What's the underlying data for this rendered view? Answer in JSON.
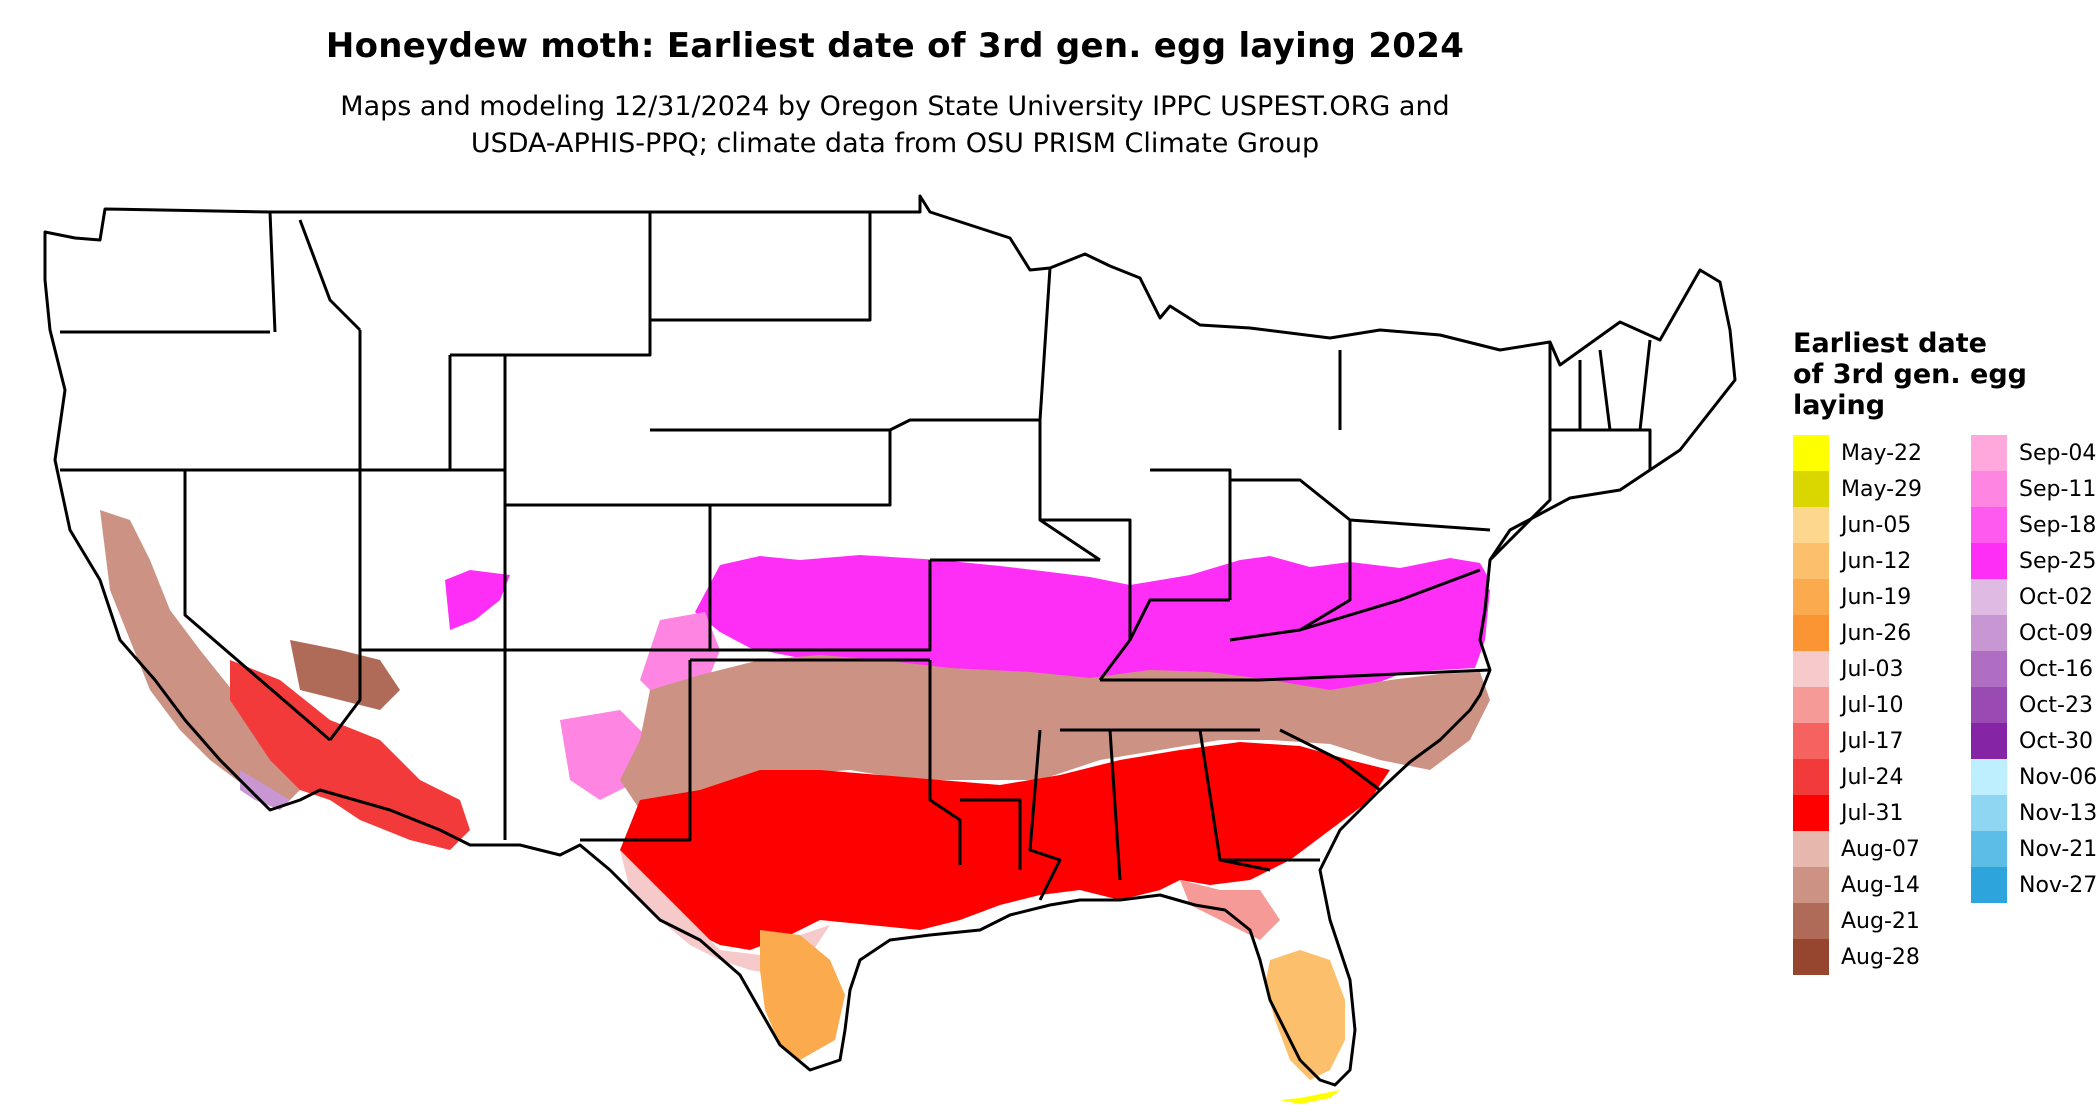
{
  "title": "Honeydew moth: Earliest date of 3rd gen. egg laying 2024",
  "subtitle_lines": [
    "Maps and modeling 12/31/2024 by Oregon State University IPPC USPEST.ORG and",
    "USDA-APHIS-PPQ; climate data from OSU PRISM Climate Group"
  ],
  "legend": {
    "title_lines": [
      "Earliest date",
      "of 3rd gen. egg",
      "laying"
    ],
    "columns": [
      [
        {
          "label": "May-22",
          "color": "#ffff00"
        },
        {
          "label": "May-29",
          "color": "#d9d600"
        },
        {
          "label": "Jun-05",
          "color": "#fdd78e"
        },
        {
          "label": "Jun-12",
          "color": "#fcc06c"
        },
        {
          "label": "Jun-19",
          "color": "#fbaa4d"
        },
        {
          "label": "Jun-26",
          "color": "#fb9533"
        },
        {
          "label": "Jul-03",
          "color": "#f6c9cb"
        },
        {
          "label": "Jul-10",
          "color": "#f69a97"
        },
        {
          "label": "Jul-17",
          "color": "#f5625f"
        },
        {
          "label": "Jul-24",
          "color": "#f33a3a"
        },
        {
          "label": "Jul-31",
          "color": "#ff0000"
        },
        {
          "label": "Aug-07",
          "color": "#e6b8ad"
        },
        {
          "label": "Aug-14",
          "color": "#cc9384"
        },
        {
          "label": "Aug-21",
          "color": "#b06a58"
        },
        {
          "label": "Aug-28",
          "color": "#96452f"
        }
      ],
      [
        {
          "label": "Sep-04",
          "color": "#ffa8dd"
        },
        {
          "label": "Sep-11",
          "color": "#ff85e3"
        },
        {
          "label": "Sep-18",
          "color": "#ff5aef"
        },
        {
          "label": "Sep-25",
          "color": "#ff2ef7"
        },
        {
          "label": "Oct-02",
          "color": "#dfbbe4"
        },
        {
          "label": "Oct-09",
          "color": "#c896d3"
        },
        {
          "label": "Oct-16",
          "color": "#b06ec3"
        },
        {
          "label": "Oct-23",
          "color": "#9a4bb3"
        },
        {
          "label": "Oct-30",
          "color": "#8524a5"
        },
        {
          "label": "Nov-06",
          "color": "#bdefff"
        },
        {
          "label": "Nov-13",
          "color": "#8ed6f1"
        },
        {
          "label": "Nov-21",
          "color": "#5cbde6"
        },
        {
          "label": "Nov-27",
          "color": "#2ea4dc"
        }
      ]
    ]
  },
  "map": {
    "colors": {
      "pink": "#ff85e3",
      "magenta": "#ff2ef7",
      "brown": "#cc9384",
      "dark_brown": "#b06a58",
      "red": "#ff0000",
      "red2": "#f33a3a",
      "light_red": "#f69a97",
      "pale_pink": "#f6c9cb",
      "orange": "#fbaa4d",
      "light_orange": "#fcc06c",
      "yellow": "#ffff00",
      "lavender": "#c896d3"
    }
  }
}
